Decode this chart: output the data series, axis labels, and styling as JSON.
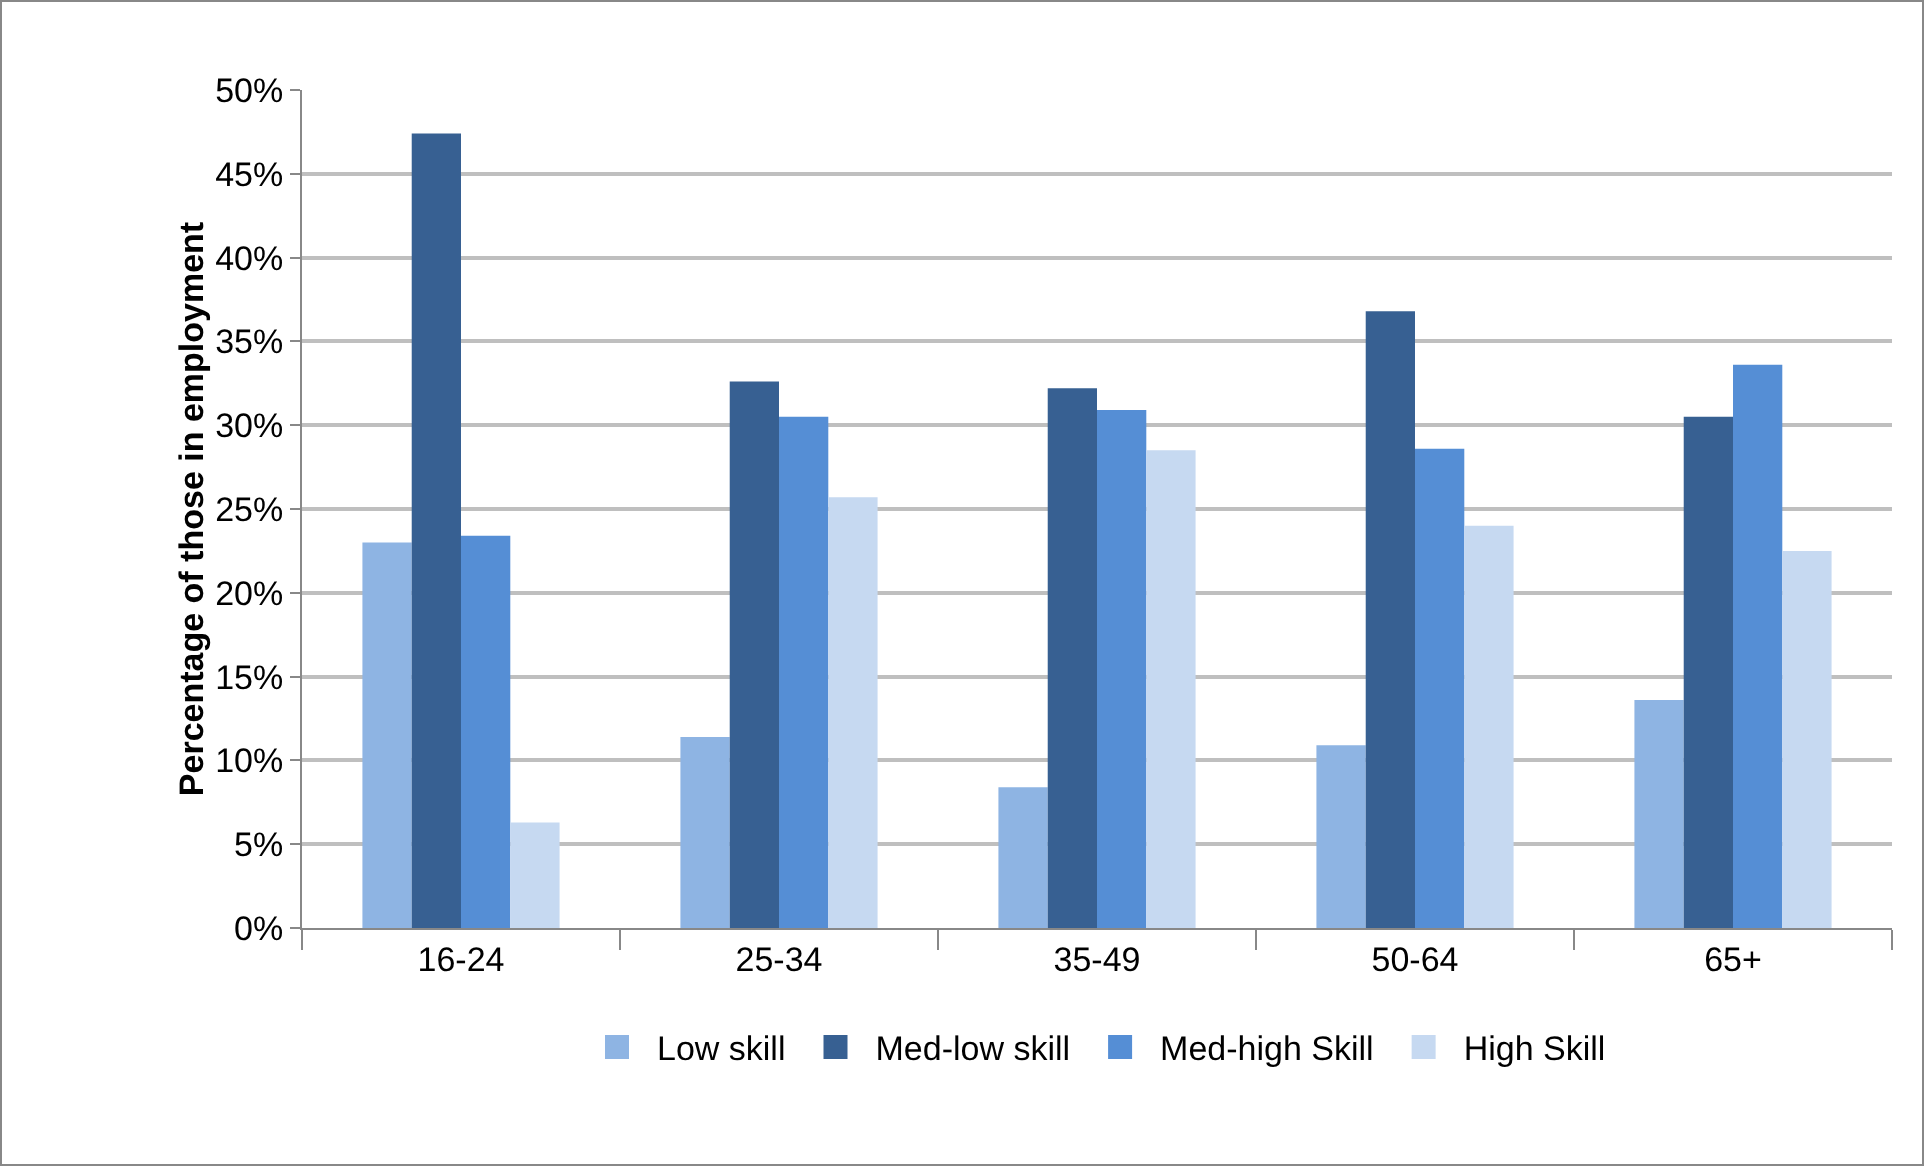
{
  "chart_data": {
    "type": "bar",
    "ylabel": "Percentage of those in employment",
    "categories": [
      "16-24",
      "25-34",
      "35-49",
      "50-64",
      "65+"
    ],
    "series": [
      {
        "name": "Low skill",
        "color": "#8eb4e3",
        "values": [
          23.0,
          11.4,
          8.4,
          10.9,
          13.6
        ]
      },
      {
        "name": "Med-low skill",
        "color": "#376092",
        "values": [
          47.4,
          32.6,
          32.2,
          36.8,
          30.5
        ]
      },
      {
        "name": "Med-high Skill",
        "color": "#558ed5",
        "values": [
          23.4,
          30.5,
          30.9,
          28.6,
          33.6
        ]
      },
      {
        "name": "High Skill",
        "color": "#c6d9f1",
        "values": [
          6.3,
          25.7,
          28.5,
          24.0,
          22.5
        ]
      }
    ],
    "ylim": [
      0,
      50
    ],
    "yticks": [
      {
        "value": 0,
        "label": "0%"
      },
      {
        "value": 5,
        "label": "5%"
      },
      {
        "value": 10,
        "label": "10%"
      },
      {
        "value": 15,
        "label": "15%"
      },
      {
        "value": 20,
        "label": "20%"
      },
      {
        "value": 25,
        "label": "25%"
      },
      {
        "value": 30,
        "label": "30%"
      },
      {
        "value": 35,
        "label": "35%"
      },
      {
        "value": 40,
        "label": "40%"
      },
      {
        "value": 45,
        "label": "45%"
      },
      {
        "value": 50,
        "label": "50%"
      }
    ],
    "grid": "y",
    "legend": "bottom"
  }
}
